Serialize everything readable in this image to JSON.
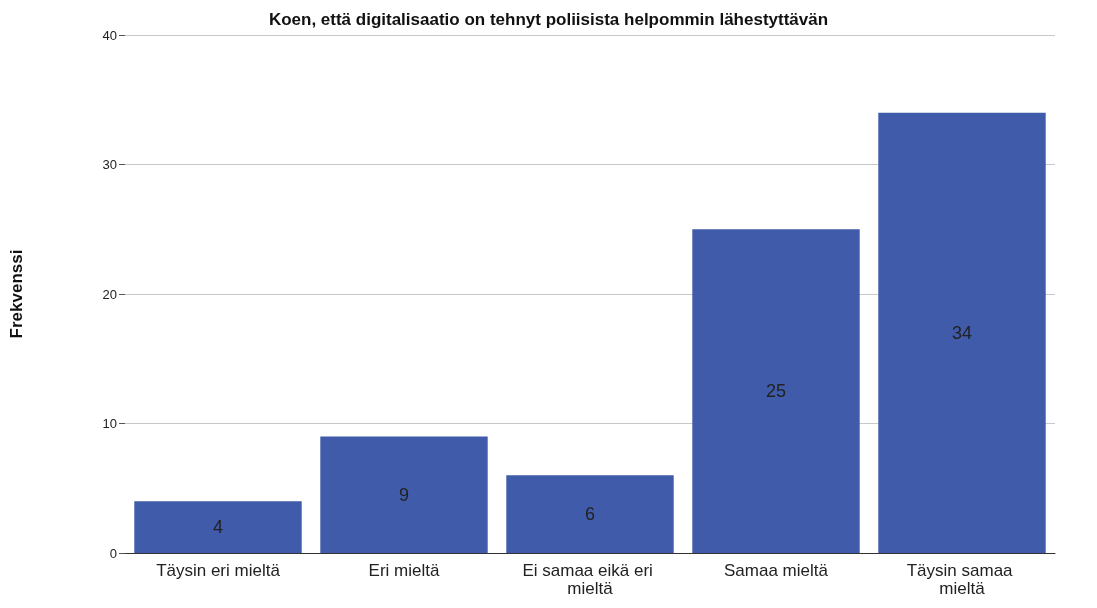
{
  "chart_data": {
    "type": "bar",
    "title": "Koen, että digitalisaatio on tehnyt poliisista helpommin lähestyttävän",
    "ylabel": "Frekvenssi",
    "categories": [
      "Täysin eri mieltä",
      "Eri mieltä",
      "Ei samaa eikä eri mieltä",
      "Samaa mieltä",
      "Täysin samaa mieltä"
    ],
    "values": [
      4,
      9,
      6,
      25,
      34
    ],
    "color": "#3f5ba9",
    "ylim": [
      0,
      40
    ],
    "yticks": [
      0,
      10,
      20,
      30,
      40
    ],
    "grid": "y",
    "data_labels": true
  }
}
